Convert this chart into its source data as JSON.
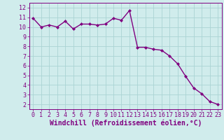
{
  "x": [
    0,
    1,
    2,
    3,
    4,
    5,
    6,
    7,
    8,
    9,
    10,
    11,
    12,
    13,
    14,
    15,
    16,
    17,
    18,
    19,
    20,
    21,
    22,
    23
  ],
  "y": [
    10.9,
    10.0,
    10.2,
    10.0,
    10.6,
    9.8,
    10.3,
    10.3,
    10.2,
    10.3,
    10.9,
    10.7,
    11.7,
    7.9,
    7.9,
    7.7,
    7.6,
    7.0,
    6.2,
    4.9,
    3.7,
    3.1,
    2.3,
    2.0
  ],
  "line_color": "#800080",
  "marker": "D",
  "marker_size": 2.0,
  "background_color": "#d0ecec",
  "grid_color": "#aad4d4",
  "xlabel": "Windchill (Refroidissement éolien,°C)",
  "xlabel_color": "#800080",
  "tick_color": "#800080",
  "xlim": [
    -0.5,
    23.5
  ],
  "ylim": [
    1.5,
    12.5
  ],
  "xticks": [
    0,
    1,
    2,
    3,
    4,
    5,
    6,
    7,
    8,
    9,
    10,
    11,
    12,
    13,
    14,
    15,
    16,
    17,
    18,
    19,
    20,
    21,
    22,
    23
  ],
  "yticks": [
    2,
    3,
    4,
    5,
    6,
    7,
    8,
    9,
    10,
    11,
    12
  ],
  "tick_fontsize": 6.0,
  "xlabel_fontsize": 7.0,
  "linewidth": 1.0
}
